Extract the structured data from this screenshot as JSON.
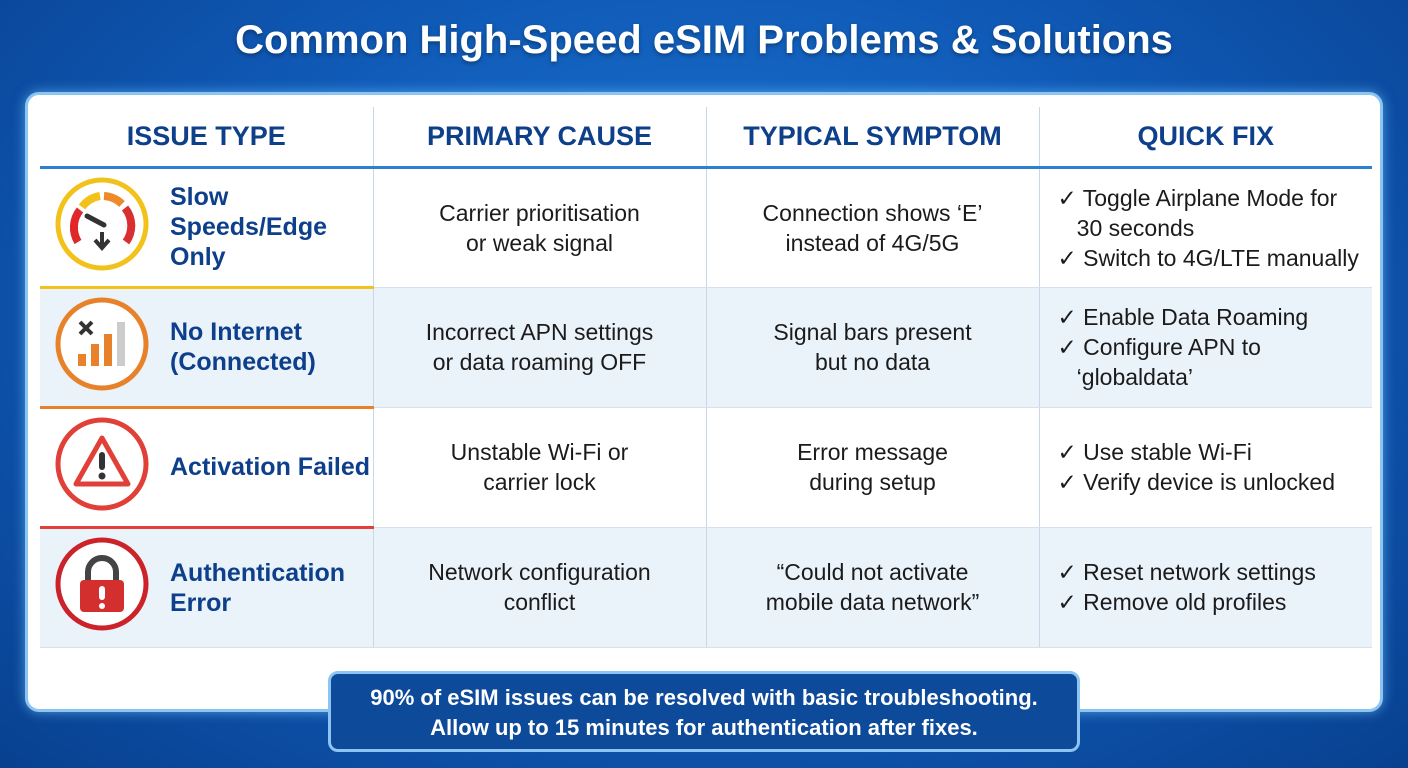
{
  "title": "Common High-Speed eSIM Problems & Solutions",
  "headers": [
    "ISSUE TYPE",
    "PRIMARY CAUSE",
    "TYPICAL SYMPTOM",
    "QUICK FIX"
  ],
  "rows": [
    {
      "icon": "speedometer-icon",
      "accent": "#f2c21b",
      "issue": "Slow Speeds/Edge Only",
      "cause": [
        "Carrier prioritisation",
        "or weak signal"
      ],
      "symptom": [
        "Connection shows ‘E’",
        "instead of 4G/5G"
      ],
      "fix": [
        "✓ Toggle Airplane Mode for",
        "   30 seconds",
        "✓ Switch to 4G/LTE manually"
      ]
    },
    {
      "icon": "no-signal-icon",
      "accent": "#e8822a",
      "issue": "No Internet (Connected)",
      "cause": [
        "Incorrect APN settings",
        "or data roaming OFF"
      ],
      "symptom": [
        "Signal bars present",
        "but no data"
      ],
      "fix": [
        "✓ Enable Data Roaming",
        "✓ Configure APN to",
        "   ‘globaldata’"
      ]
    },
    {
      "icon": "warning-icon",
      "accent": "#e04038",
      "issue": "Activation Failed",
      "cause": [
        "Unstable Wi-Fi or",
        "carrier lock"
      ],
      "symptom": [
        "Error message",
        "during setup"
      ],
      "fix": [
        "✓ Use stable Wi-Fi",
        "✓ Verify device is unlocked"
      ]
    },
    {
      "icon": "lock-icon",
      "accent": "#cc2229",
      "issue": "Authentication Error",
      "cause": [
        "Network configuration",
        "conflict"
      ],
      "symptom": [
        "“Could not activate",
        "mobile data network”"
      ],
      "fix": [
        "✓ Reset network settings",
        "✓ Remove old profiles"
      ]
    }
  ],
  "footer": [
    "90% of eSIM issues can be resolved with basic troubleshooting.",
    "Allow up to 15 minutes for authentication after fixes."
  ]
}
